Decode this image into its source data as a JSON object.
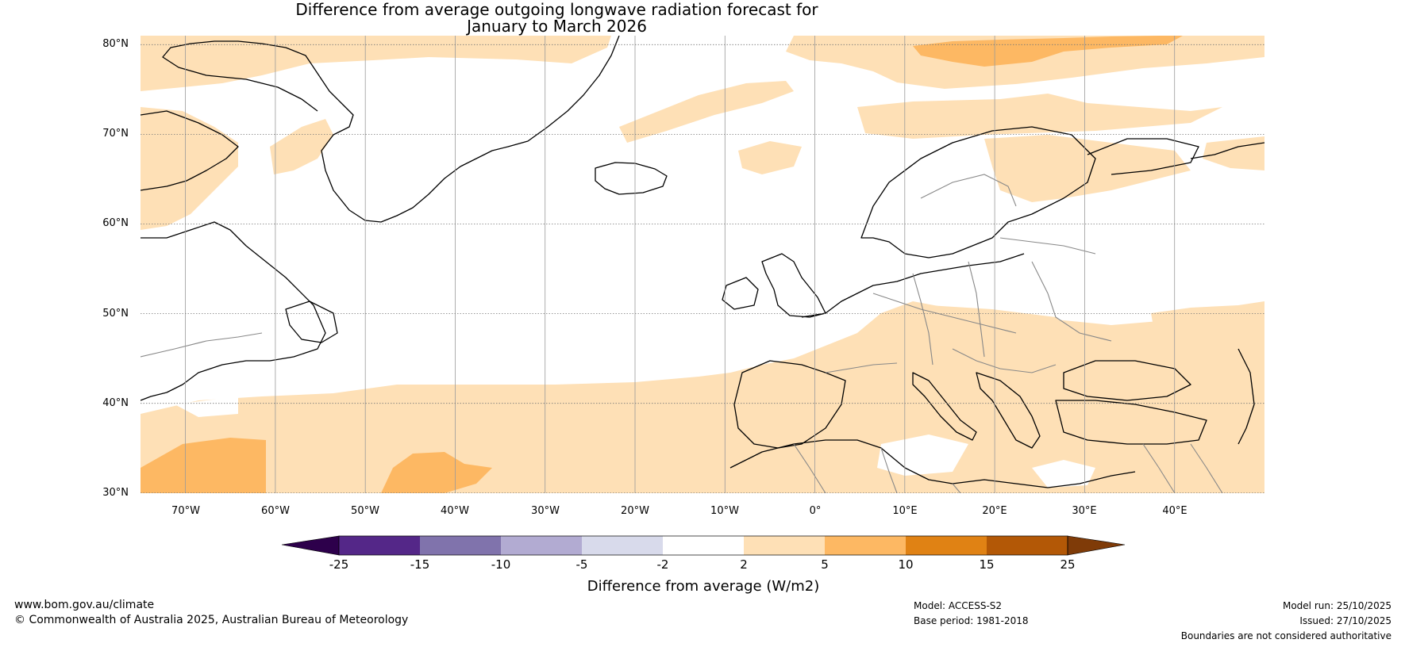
{
  "title": {
    "line1": "Difference from average outgoing longwave radiation forecast for",
    "line2": "January to March 2026"
  },
  "map": {
    "lat_labels": [
      "80°N",
      "70°N",
      "60°N",
      "50°N",
      "40°N",
      "30°N"
    ],
    "lon_labels": [
      "70°W",
      "60°W",
      "50°W",
      "40°W",
      "30°W",
      "20°W",
      "10°W",
      "0°",
      "10°E",
      "20°E",
      "30°E",
      "40°E"
    ],
    "lat_range": [
      30,
      81
    ],
    "lon_range": [
      -75,
      50
    ]
  },
  "colorbar": {
    "ticks": [
      "-25",
      "-15",
      "-10",
      "-5",
      "-2",
      "2",
      "5",
      "10",
      "15",
      "25"
    ],
    "colors": [
      "#2d004b",
      "#542788",
      "#8073ac",
      "#b2abd2",
      "#d8daeb",
      "#ffffff",
      "#fee0b6",
      "#fdb863",
      "#e08214",
      "#b35806",
      "#7f3b08"
    ],
    "label": "Difference from average (W/m2)"
  },
  "footer": {
    "website": "www.bom.gov.au/climate",
    "copyright": "© Commonwealth of Australia 2025, Australian Bureau of Meteorology",
    "model": "Model: ACCESS-S2",
    "base_period": "Base period: 1981-2018",
    "model_run": "Model run: 25/10/2025",
    "issued": "Issued: 27/10/2025",
    "disclaimer": "Boundaries are not considered authoritative"
  }
}
